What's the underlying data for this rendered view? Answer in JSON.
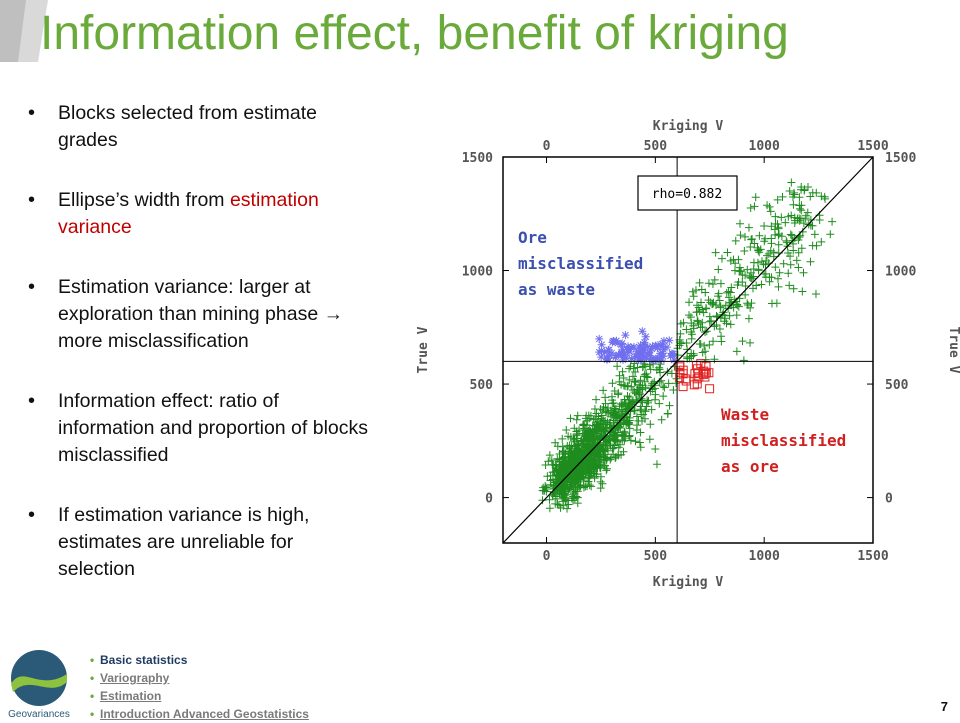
{
  "title": "Information effect, benefit of kriging",
  "bullets": [
    {
      "text": "Blocks selected from estimate grades"
    },
    {
      "pre": "Ellipse’s width from ",
      "highlight": "estimation variance"
    },
    {
      "text": "Estimation variance: larger at exploration than mining phase → more misclassification"
    },
    {
      "text": "Information effect: ratio of information and proportion of blocks misclassified"
    },
    {
      "text": "If estimation variance is high, estimates are unreliable for selection"
    }
  ],
  "chart_data": {
    "type": "scatter",
    "xlabel": "Kriging V",
    "ylabel": "True V",
    "xlim": [
      -200,
      1500
    ],
    "ylim": [
      -200,
      1500
    ],
    "ticks": [
      "0",
      "500",
      "1000",
      "1500"
    ],
    "y_ticks": [
      "0",
      "500",
      "1000",
      "1500"
    ],
    "cutoff_x": 600,
    "cutoff_y": 600,
    "diagonal": true,
    "annotation": "rho=0.882",
    "ore_label": "Ore misclassified as waste",
    "waste_label": "Waste misclassified as ore",
    "colors": {
      "correct": "#1e8c1e",
      "ore_mis": "#6f6fef",
      "waste_mis": "#e02020"
    }
  },
  "nav": {
    "items": [
      "Basic statistics",
      "Variography",
      "Estimation",
      "Introduction Advanced Geostatistics"
    ]
  },
  "logo_text": "Geovariances",
  "page_number": "7"
}
